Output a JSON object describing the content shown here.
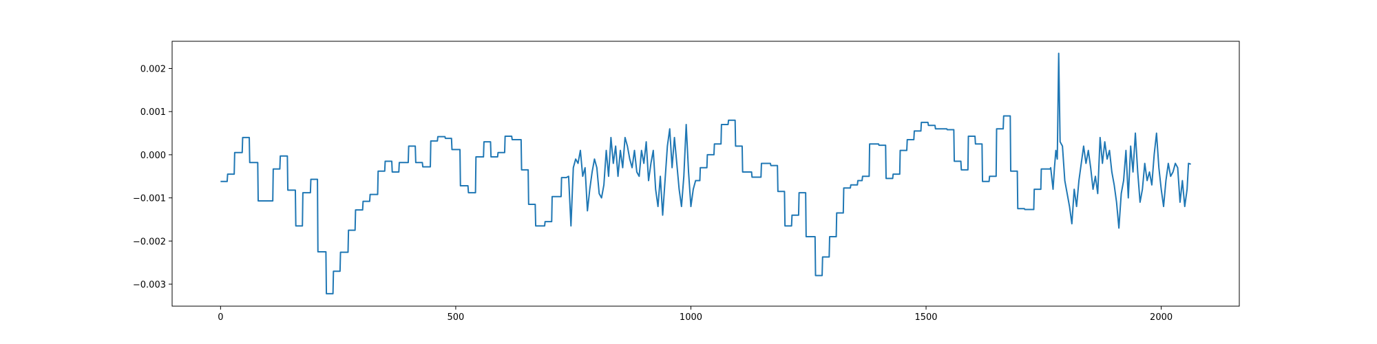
{
  "chart_data": {
    "type": "line",
    "color": "#1f77b4",
    "x": [
      0,
      14,
      15,
      29,
      30,
      46,
      47,
      61,
      62,
      79,
      80,
      111,
      112,
      126,
      127,
      142,
      143,
      159,
      160,
      174,
      175,
      191,
      192,
      206,
      207,
      224,
      225,
      239,
      240,
      254,
      255,
      271,
      272,
      286,
      287,
      302,
      303,
      317,
      318,
      334,
      335,
      349,
      350,
      364,
      365,
      379,
      380,
      399,
      400,
      414,
      415,
      429,
      430,
      446,
      447,
      461,
      462,
      477,
      478,
      491,
      492,
      509,
      510,
      526,
      527,
      542,
      543,
      559,
      560,
      574,
      575,
      589,
      590,
      604,
      605,
      619,
      620,
      639,
      640,
      654,
      655,
      669,
      670,
      689,
      690,
      704,
      705,
      724,
      725,
      735,
      740,
      745,
      750,
      755,
      760,
      765,
      770,
      775,
      780,
      785,
      790,
      795,
      800,
      805,
      810,
      815,
      820,
      825,
      830,
      835,
      840,
      845,
      850,
      855,
      860,
      865,
      870,
      875,
      880,
      885,
      890,
      895,
      900,
      905,
      910,
      915,
      920,
      925,
      930,
      935,
      940,
      945,
      950,
      955,
      960,
      965,
      970,
      975,
      980,
      985,
      990,
      995,
      1000,
      1005,
      1010,
      1019,
      1020,
      1034,
      1035,
      1049,
      1050,
      1064,
      1065,
      1079,
      1080,
      1094,
      1095,
      1109,
      1110,
      1129,
      1130,
      1149,
      1150,
      1169,
      1170,
      1184,
      1185,
      1199,
      1200,
      1214,
      1215,
      1229,
      1230,
      1244,
      1245,
      1264,
      1265,
      1279,
      1280,
      1294,
      1295,
      1309,
      1310,
      1324,
      1325,
      1339,
      1340,
      1354,
      1355,
      1364,
      1365,
      1379,
      1380,
      1399,
      1400,
      1414,
      1415,
      1429,
      1430,
      1444,
      1445,
      1459,
      1460,
      1474,
      1475,
      1489,
      1490,
      1504,
      1505,
      1519,
      1520,
      1544,
      1545,
      1559,
      1560,
      1574,
      1575,
      1589,
      1590,
      1604,
      1605,
      1619,
      1620,
      1634,
      1635,
      1649,
      1650,
      1664,
      1665,
      1679,
      1680,
      1694,
      1695,
      1709,
      1710,
      1729,
      1730,
      1744,
      1745,
      1764,
      1765,
      1770,
      1773,
      1776,
      1779,
      1782,
      1785,
      1790,
      1795,
      1800,
      1805,
      1810,
      1815,
      1820,
      1825,
      1830,
      1835,
      1840,
      1845,
      1850,
      1855,
      1860,
      1865,
      1870,
      1875,
      1880,
      1885,
      1890,
      1895,
      1900,
      1905,
      1910,
      1915,
      1920,
      1925,
      1930,
      1935,
      1940,
      1945,
      1950,
      1955,
      1960,
      1965,
      1970,
      1975,
      1980,
      1985,
      1990,
      1995,
      2000,
      2005,
      2010,
      2015,
      2020,
      2025,
      2030,
      2035,
      2040,
      2045,
      2050,
      2055,
      2058,
      2063
    ],
    "values": [
      -0.00062,
      -0.00062,
      -0.00045,
      -0.00045,
      5e-05,
      5e-05,
      0.0004,
      0.0004,
      -0.00018,
      -0.00018,
      -0.00107,
      -0.00107,
      -0.00033,
      -0.00033,
      -3e-05,
      -3e-05,
      -0.00082,
      -0.00082,
      -0.00165,
      -0.00165,
      -0.00088,
      -0.00088,
      -0.00057,
      -0.00057,
      -0.00225,
      -0.00225,
      -0.00322,
      -0.00322,
      -0.0027,
      -0.0027,
      -0.00226,
      -0.00226,
      -0.00175,
      -0.00175,
      -0.00128,
      -0.00128,
      -0.00108,
      -0.00108,
      -0.00092,
      -0.00092,
      -0.00038,
      -0.00038,
      -0.00015,
      -0.00015,
      -0.0004,
      -0.0004,
      -0.00018,
      -0.00018,
      0.0002,
      0.0002,
      -0.00018,
      -0.00018,
      -0.00028,
      -0.00028,
      0.00032,
      0.00032,
      0.00042,
      0.00042,
      0.00038,
      0.00038,
      0.00012,
      0.00012,
      -0.00072,
      -0.00072,
      -0.00088,
      -0.00088,
      -5e-05,
      -5e-05,
      0.0003,
      0.0003,
      -5e-05,
      -5e-05,
      5e-05,
      5e-05,
      0.00043,
      0.00043,
      0.00035,
      0.00035,
      -0.00035,
      -0.00035,
      -0.00115,
      -0.00115,
      -0.00165,
      -0.00165,
      -0.00155,
      -0.00155,
      -0.00097,
      -0.00097,
      -0.00053,
      -0.00053,
      -0.0005,
      -0.00165,
      -0.0003,
      -0.0001,
      -0.0002,
      0.0001,
      -0.0005,
      -0.0003,
      -0.0013,
      -0.0008,
      -0.0004,
      -0.0001,
      -0.0003,
      -0.0009,
      -0.001,
      -0.0007,
      0.0001,
      -0.0005,
      0.0004,
      -0.0002,
      0.0002,
      -0.0005,
      0.0001,
      -0.0003,
      0.0004,
      0.0002,
      -0.0001,
      -0.0003,
      0.0001,
      -0.0004,
      -0.0005,
      0.0001,
      -0.0002,
      0.0003,
      -0.0006,
      -0.0002,
      0.0001,
      -0.0008,
      -0.0012,
      -0.0005,
      -0.0014,
      -0.0006,
      0.0002,
      0.0006,
      -0.0003,
      0.0004,
      -0.0002,
      -0.0008,
      -0.0012,
      -0.0005,
      0.0007,
      -0.0004,
      -0.0012,
      -0.0008,
      -0.0006,
      -0.0006,
      -0.0003,
      -0.0003,
      0.0,
      0.0,
      0.00025,
      0.00025,
      0.0007,
      0.0007,
      0.0008,
      0.0008,
      0.0002,
      0.0002,
      -0.0004,
      -0.0004,
      -0.00052,
      -0.00052,
      -0.0002,
      -0.0002,
      -0.00025,
      -0.00025,
      -0.00085,
      -0.00085,
      -0.00165,
      -0.00165,
      -0.0014,
      -0.0014,
      -0.00088,
      -0.00088,
      -0.0019,
      -0.0019,
      -0.0028,
      -0.0028,
      -0.00237,
      -0.00237,
      -0.0019,
      -0.0019,
      -0.00135,
      -0.00135,
      -0.00077,
      -0.00077,
      -0.0007,
      -0.0007,
      -0.0006,
      -0.0006,
      -0.0005,
      -0.0005,
      0.00025,
      0.00025,
      0.00022,
      0.00022,
      -0.00055,
      -0.00055,
      -0.00045,
      -0.00045,
      0.0001,
      0.0001,
      0.00035,
      0.00035,
      0.00055,
      0.00055,
      0.00075,
      0.00075,
      0.00068,
      0.00068,
      0.0006,
      0.0006,
      0.00058,
      0.00058,
      -0.00015,
      -0.00015,
      -0.00035,
      -0.00035,
      0.00043,
      0.00043,
      0.00025,
      0.00025,
      -0.00062,
      -0.00062,
      -0.0005,
      -0.0005,
      0.0006,
      0.0006,
      0.0009,
      0.0009,
      -0.00038,
      -0.00038,
      -0.00125,
      -0.00125,
      -0.00127,
      -0.00127,
      -0.0008,
      -0.0008,
      -0.00033,
      -0.00033,
      -0.0003,
      -0.0008,
      -0.0003,
      0.0001,
      -0.0001,
      0.00235,
      0.0003,
      0.0002,
      -0.0006,
      -0.0009,
      -0.0012,
      -0.0016,
      -0.0008,
      -0.0012,
      -0.0006,
      -0.0002,
      0.0002,
      -0.0002,
      0.0001,
      -0.0003,
      -0.0008,
      -0.0005,
      -0.0009,
      0.0004,
      -0.0002,
      0.0003,
      -0.0001,
      0.0001,
      -0.0004,
      -0.0007,
      -0.0011,
      -0.0017,
      -0.0009,
      -0.0006,
      0.0001,
      -0.001,
      0.0002,
      -0.0004,
      0.0005,
      -0.0004,
      -0.0011,
      -0.0008,
      -0.0002,
      -0.0006,
      -0.0004,
      -0.0007,
      0.0,
      0.0005,
      -0.0003,
      -0.0008,
      -0.0012,
      -0.0006,
      -0.0002,
      -0.0005,
      -0.0004,
      -0.0002,
      -0.0003,
      -0.0011,
      -0.0006,
      -0.0012,
      -0.0008,
      -0.0002,
      -0.00022
    ],
    "xlim": [
      -103,
      2166
    ],
    "ylim": [
      -0.00351,
      0.00263
    ],
    "xticks": [
      0,
      500,
      1000,
      1500,
      2000
    ],
    "yticks": [
      {
        "value": -0.003,
        "label": "−0.003"
      },
      {
        "value": -0.002,
        "label": "−0.002"
      },
      {
        "value": -0.001,
        "label": "−0.001"
      },
      {
        "value": 0,
        "label": "0.000"
      },
      {
        "value": 0.001,
        "label": "0.001"
      },
      {
        "value": 0.002,
        "label": "0.002"
      }
    ]
  }
}
